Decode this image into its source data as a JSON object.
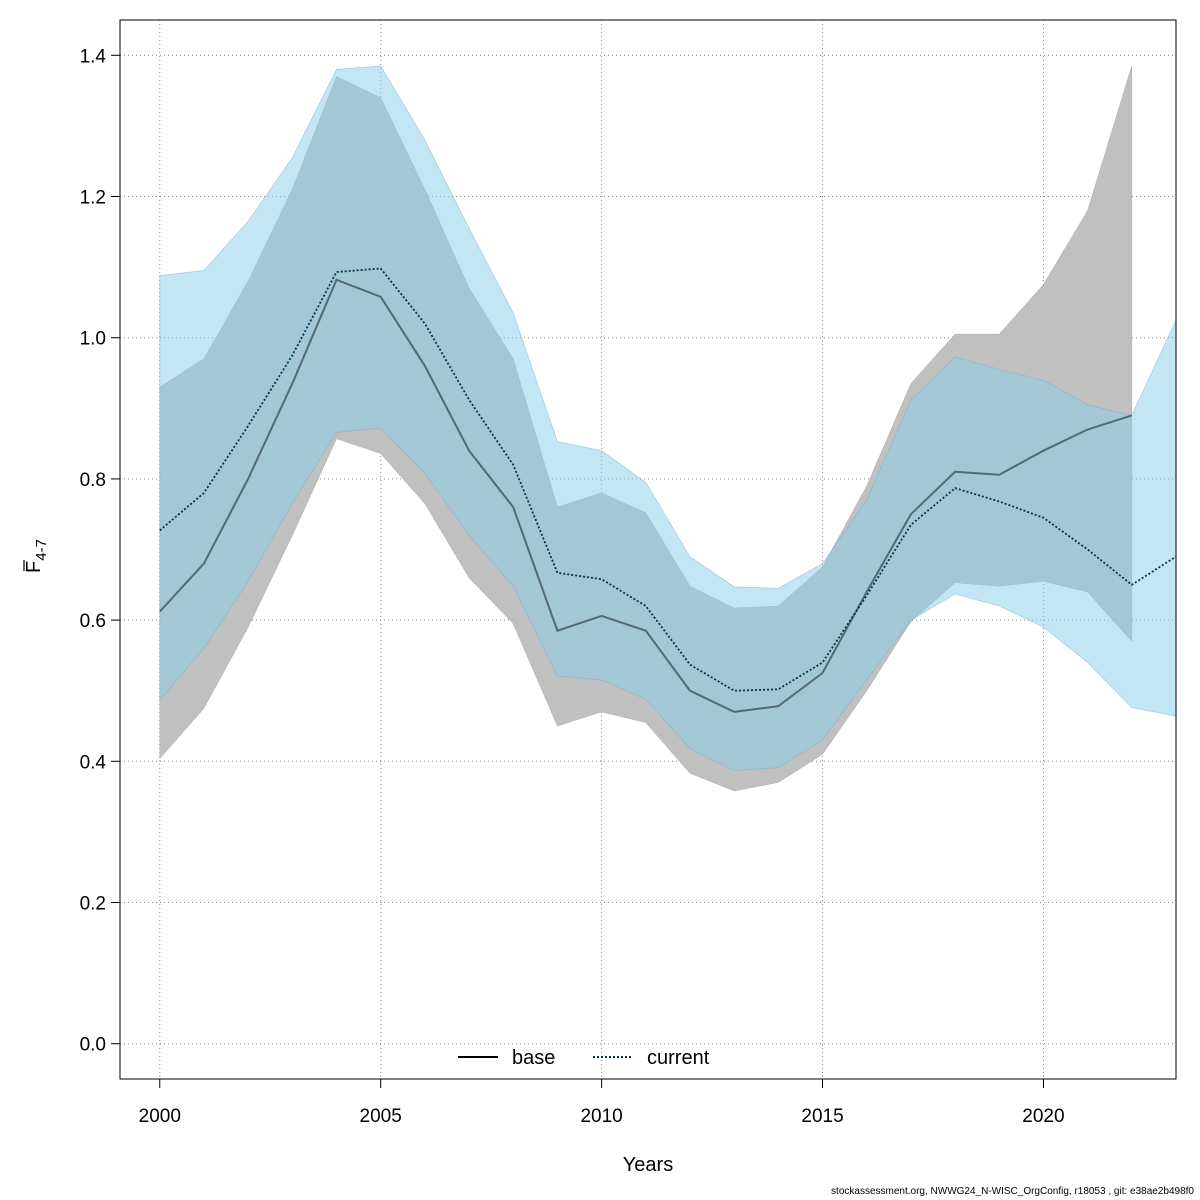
{
  "chart_data": {
    "type": "line",
    "xlabel": "Years",
    "ylabel_main": "F",
    "ylabel_sub": "4-7",
    "xlim": [
      1999.1,
      2023
    ],
    "ylim": [
      -0.05,
      1.45
    ],
    "xticks": [
      2000,
      2005,
      2010,
      2015,
      2020
    ],
    "yticks": [
      0.0,
      0.2,
      0.4,
      0.6,
      0.8,
      1.0,
      1.2,
      1.4
    ],
    "ytick_labels": [
      "0.0",
      "0.2",
      "0.4",
      "0.6",
      "0.8",
      "1.0",
      "1.2",
      "1.4"
    ],
    "grid": true,
    "legend_position": "bottom-center",
    "series": [
      {
        "name": "base",
        "line_style": "solid",
        "line_color": "#3a4a52",
        "band_color": "#bdbdbd",
        "x": [
          2000,
          2001,
          2002,
          2003,
          2004,
          2005,
          2006,
          2007,
          2008,
          2009,
          2010,
          2011,
          2012,
          2013,
          2014,
          2015,
          2016,
          2017,
          2018,
          2019,
          2020,
          2021,
          2022
        ],
        "values": [
          0.612,
          0.68,
          0.8,
          0.935,
          1.082,
          1.058,
          0.96,
          0.84,
          0.76,
          0.585,
          0.606,
          0.585,
          0.5,
          0.47,
          0.478,
          0.525,
          0.64,
          0.75,
          0.81,
          0.806,
          0.84,
          0.87,
          0.89
        ],
        "upper": [
          0.93,
          0.97,
          1.08,
          1.21,
          1.37,
          1.34,
          1.21,
          1.07,
          0.97,
          0.76,
          0.78,
          0.752,
          0.648,
          0.617,
          0.62,
          0.675,
          0.79,
          0.935,
          1.005,
          1.005,
          1.075,
          1.18,
          1.385
        ],
        "lower": [
          0.404,
          0.475,
          0.59,
          0.72,
          0.857,
          0.836,
          0.765,
          0.66,
          0.595,
          0.45,
          0.47,
          0.455,
          0.383,
          0.358,
          0.37,
          0.41,
          0.5,
          0.598,
          0.653,
          0.648,
          0.655,
          0.64,
          0.57
        ]
      },
      {
        "name": "current",
        "line_style": "dotted",
        "line_color": "#00344f",
        "band_color": "#87ceeb",
        "x": [
          2000,
          2001,
          2002,
          2003,
          2004,
          2005,
          2006,
          2007,
          2008,
          2009,
          2010,
          2011,
          2012,
          2013,
          2014,
          2015,
          2016,
          2017,
          2018,
          2019,
          2020,
          2021,
          2022,
          2023
        ],
        "values": [
          0.727,
          0.78,
          0.875,
          0.975,
          1.093,
          1.098,
          1.02,
          0.912,
          0.82,
          0.667,
          0.658,
          0.62,
          0.537,
          0.5,
          0.502,
          0.54,
          0.635,
          0.735,
          0.787,
          0.768,
          0.745,
          0.7,
          0.65,
          0.69
        ],
        "upper": [
          1.088,
          1.095,
          1.165,
          1.255,
          1.38,
          1.385,
          1.28,
          1.155,
          1.035,
          0.853,
          0.84,
          0.795,
          0.69,
          0.647,
          0.645,
          0.68,
          0.77,
          0.912,
          0.973,
          0.955,
          0.94,
          0.905,
          0.89,
          1.025
        ],
        "lower": [
          0.487,
          0.56,
          0.655,
          0.765,
          0.866,
          0.872,
          0.808,
          0.72,
          0.648,
          0.521,
          0.515,
          0.488,
          0.418,
          0.387,
          0.391,
          0.43,
          0.515,
          0.6,
          0.637,
          0.62,
          0.59,
          0.54,
          0.476,
          0.464
        ]
      }
    ]
  },
  "footer": "stockassessment.org, NWWG24_N-WISC_OrgConfig, r18053 , git: e38ae2b498f0"
}
